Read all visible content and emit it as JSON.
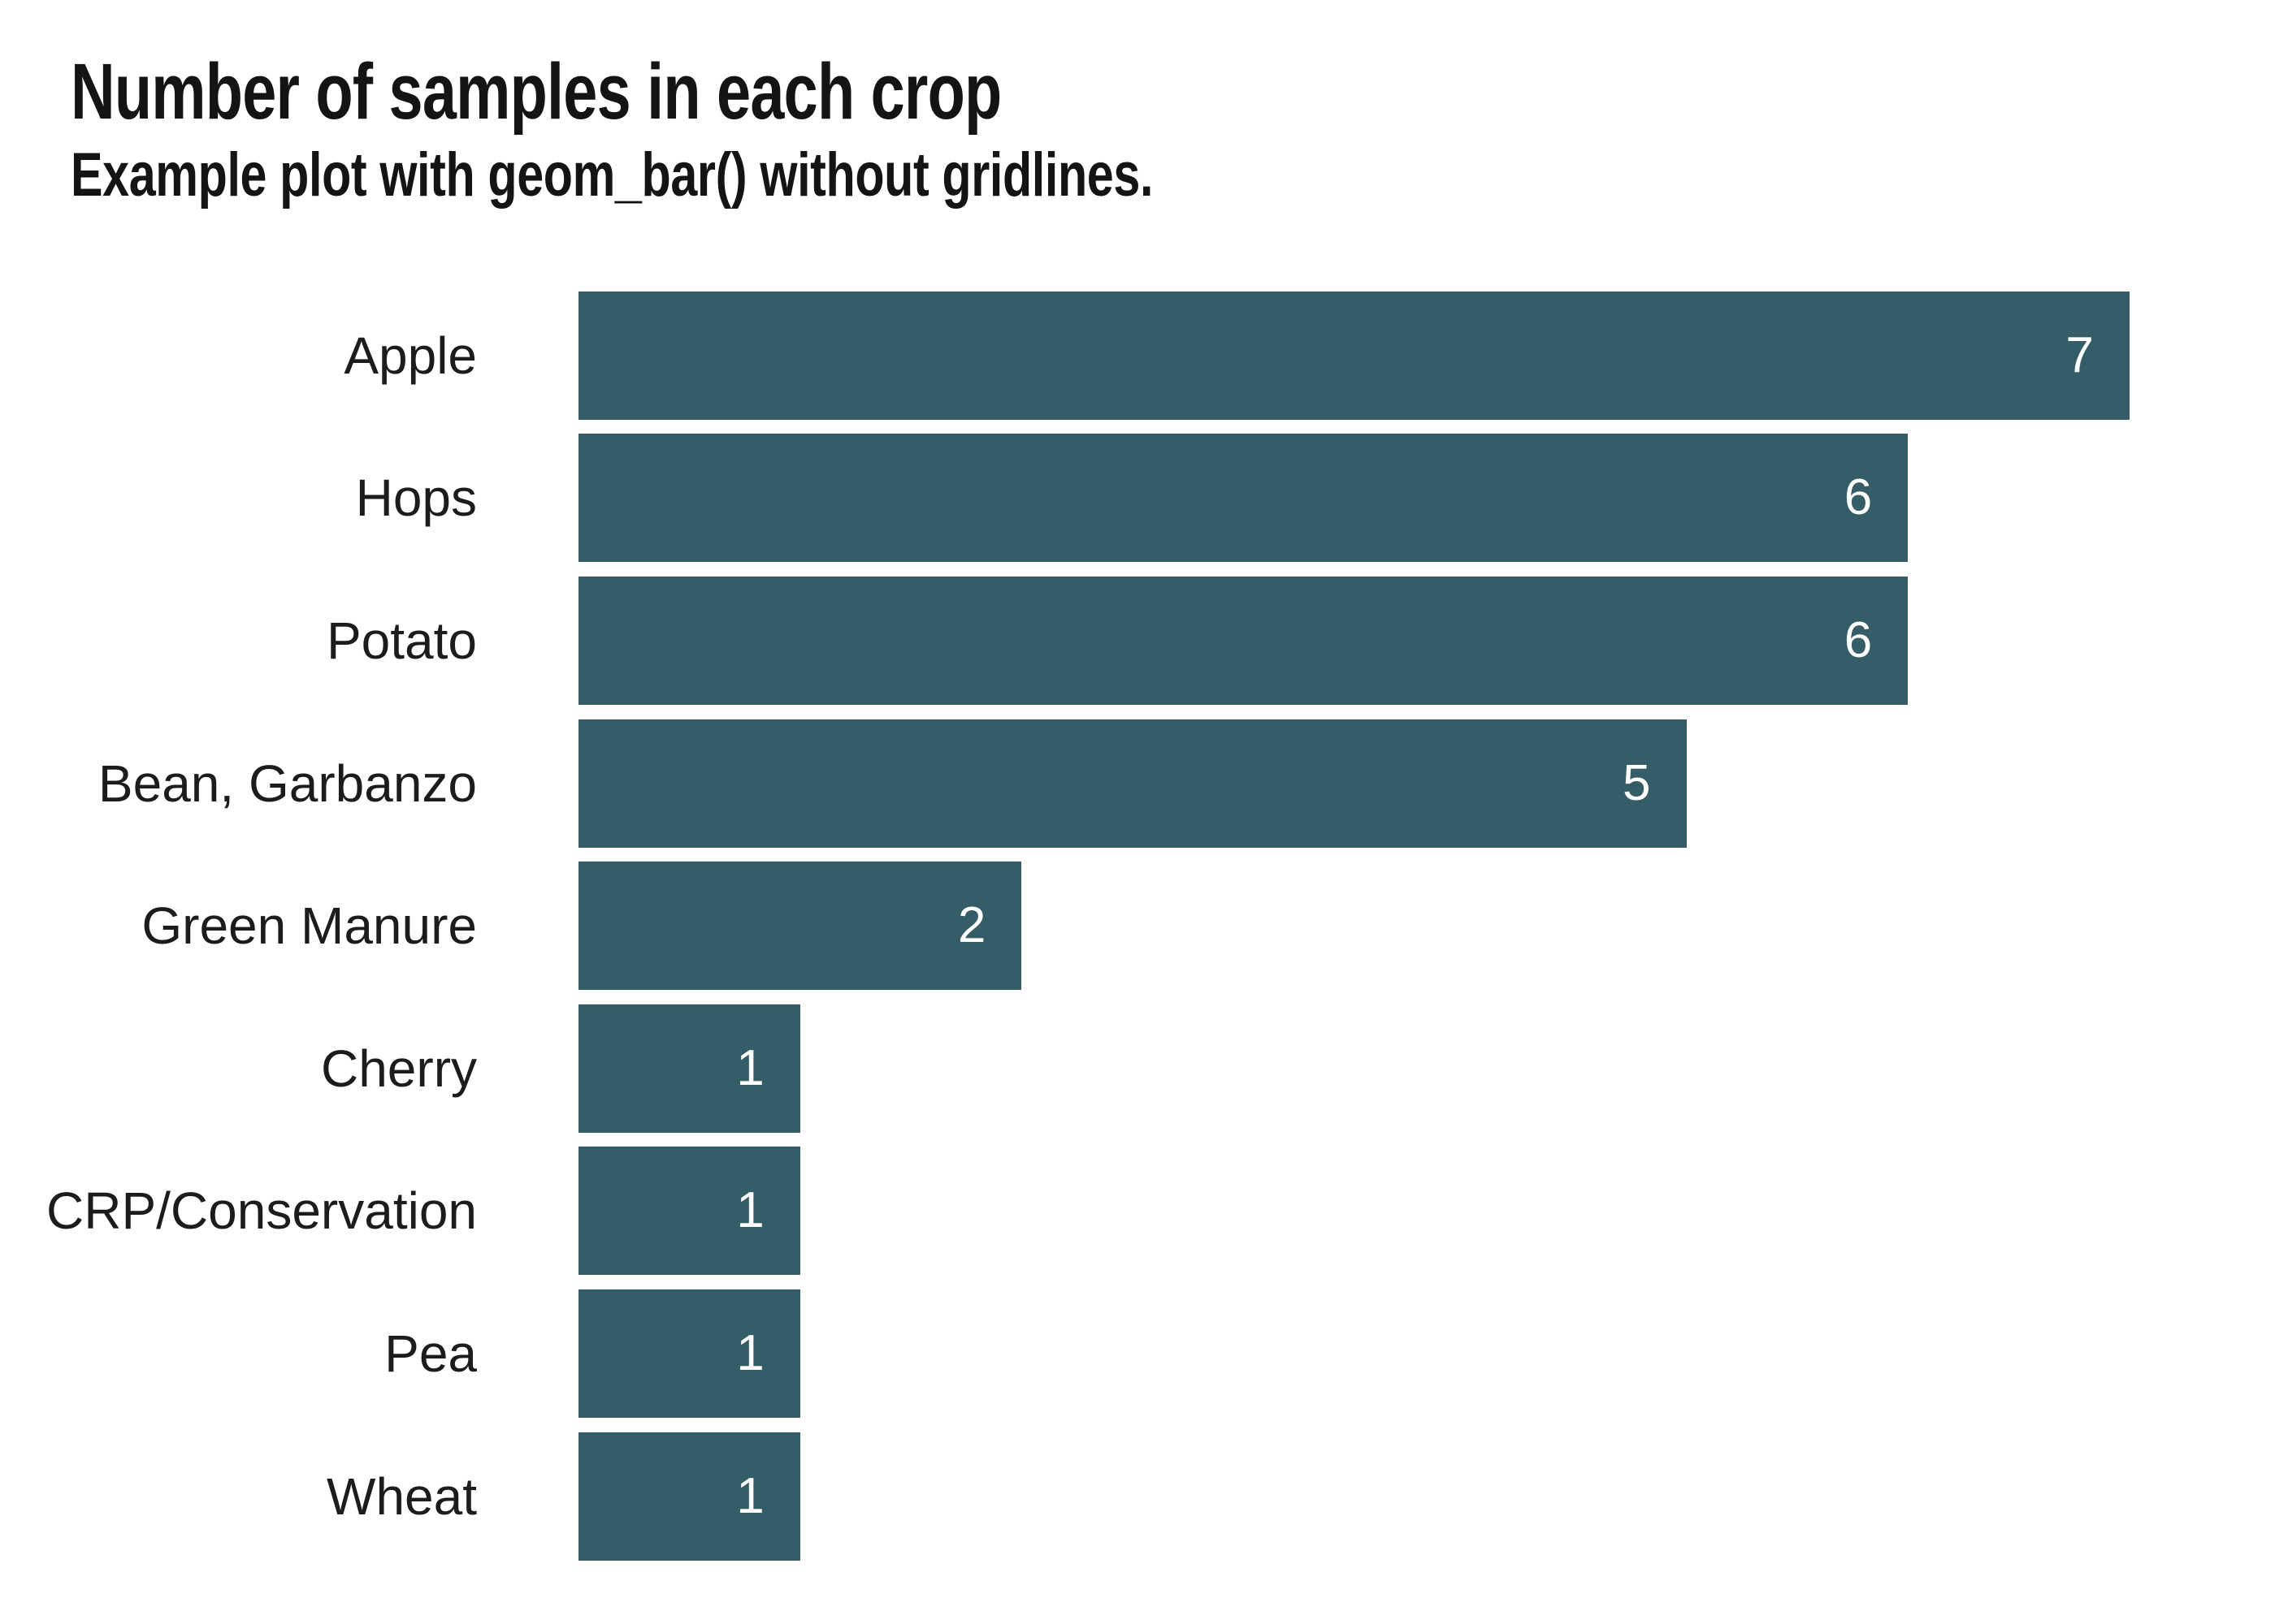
{
  "chart_data": {
    "type": "bar",
    "orientation": "horizontal",
    "title": "Number of samples in each crop",
    "subtitle": "Example plot with geom_bar() without gridlines.",
    "categories": [
      "Apple",
      "Hops",
      "Potato",
      "Bean, Garbanzo",
      "Green Manure",
      "Cherry",
      "CRP/Conservation",
      "Pea",
      "Wheat"
    ],
    "values": [
      7,
      6,
      6,
      5,
      2,
      1,
      1,
      1,
      1
    ],
    "value_labels": [
      "7",
      "6",
      "6",
      "5",
      "2",
      "1",
      "1",
      "1",
      "1"
    ],
    "value_label_position": "inside-right",
    "xlabel": "",
    "ylabel": "",
    "xlim": [
      0,
      7
    ],
    "gridlines": false,
    "axis_lines": false,
    "legend": "none",
    "colors": {
      "bar": "#345d67",
      "value_label": "#ffffff",
      "title": "#141414",
      "subtitle": "#141414",
      "category_label": "#1c1c1c",
      "background": "#ffffff"
    }
  }
}
